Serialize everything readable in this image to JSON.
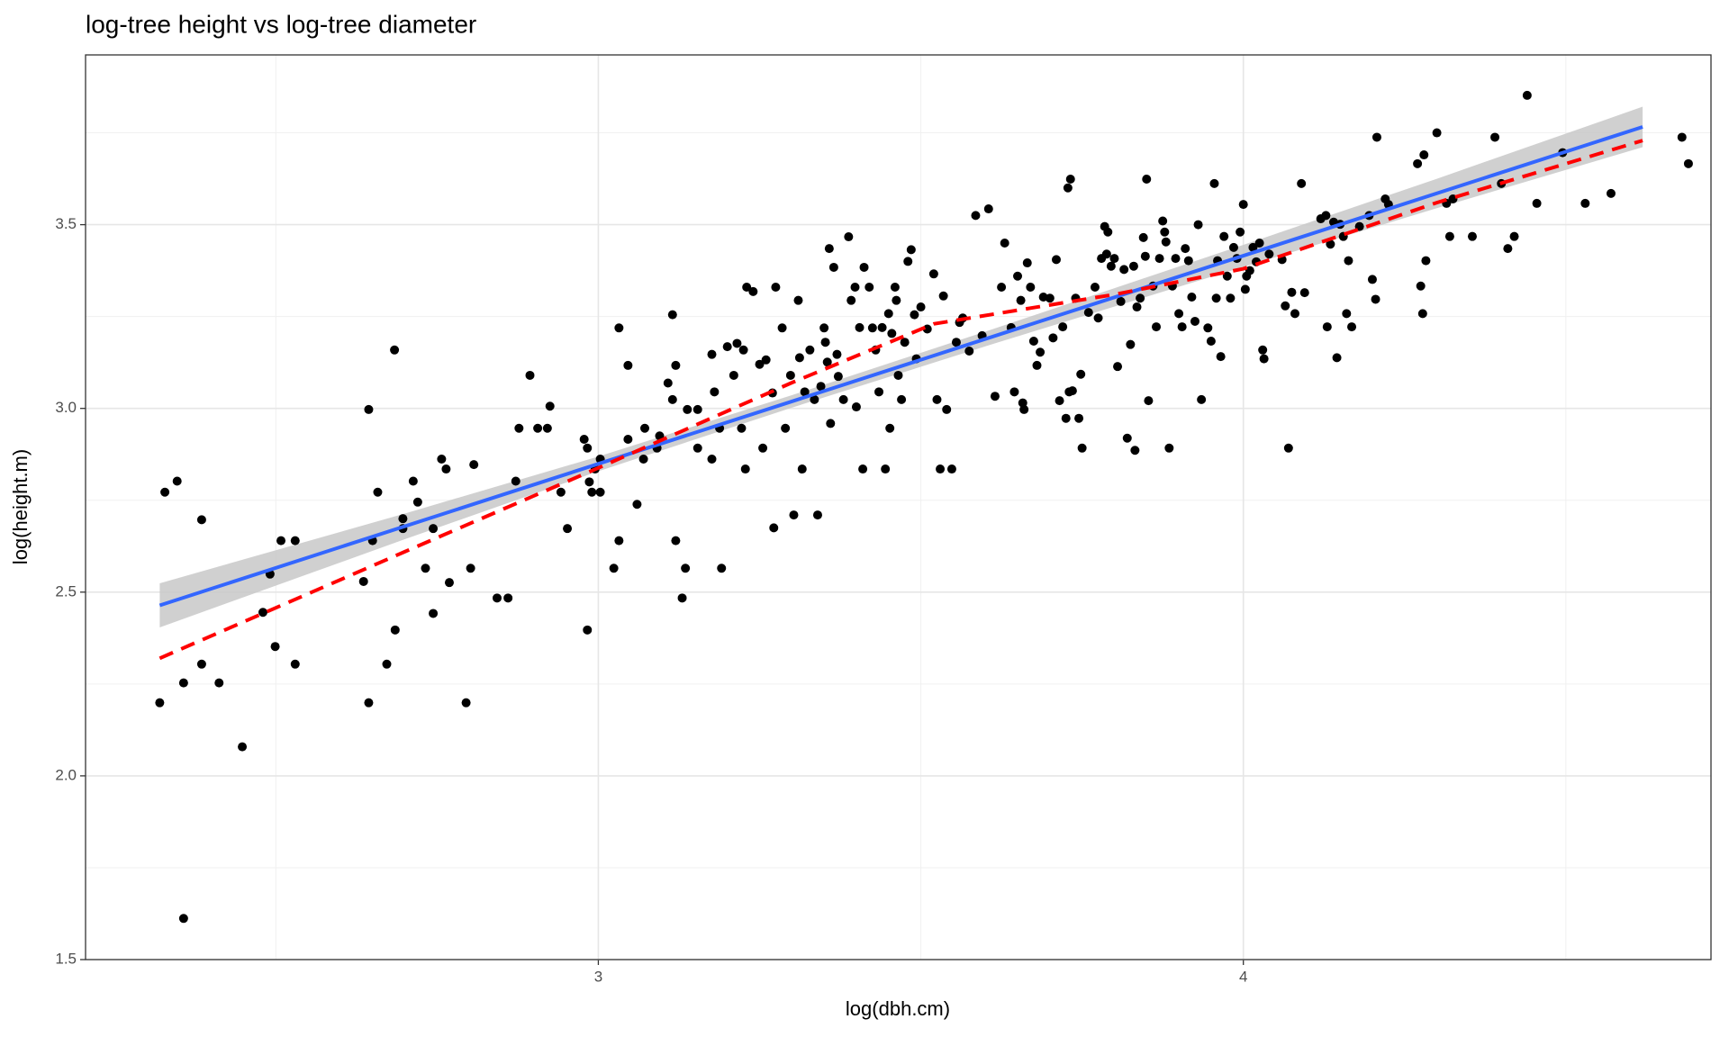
{
  "chart_data": {
    "type": "scatter",
    "title": "log-tree height vs log-tree diameter",
    "x_label": "log(dbh.cm)",
    "y_label": "log(height.m)",
    "xlim": [
      2.205,
      4.725
    ],
    "ylim": [
      1.5,
      3.962
    ],
    "xticks": [
      3,
      4
    ],
    "yticks": [
      1.5,
      {
        "value": 2,
        "label": "2.0"
      },
      2.5,
      {
        "value": 3,
        "label": "3.0"
      },
      3.5
    ],
    "xminor": [
      2.5,
      3.5,
      4.5
    ],
    "yminor": [
      1.75,
      2.25,
      2.75,
      3.25,
      3.75
    ],
    "grid": true,
    "series": [
      {
        "type": "scatter",
        "color": "#000000",
        "x": [
          2.32,
          2.328,
          2.347,
          2.357,
          2.357,
          2.385,
          2.385,
          2.412,
          2.448,
          2.48,
          2.491,
          2.499,
          2.508,
          2.53,
          2.53,
          2.636,
          2.644,
          2.644,
          2.65,
          2.658,
          2.672,
          2.684,
          2.685,
          2.697,
          2.697,
          2.713,
          2.72,
          2.732,
          2.744,
          2.744,
          2.757,
          2.764,
          2.769,
          2.795,
          2.802,
          2.807,
          2.843,
          2.86,
          2.872,
          2.877,
          2.894,
          2.906,
          2.921,
          2.925,
          2.942,
          2.952,
          2.978,
          2.983,
          2.983,
          2.986,
          2.99,
          2.995,
          3.003,
          3.003,
          3.024,
          3.032,
          3.032,
          3.046,
          3.046,
          3.06,
          3.07,
          3.072,
          3.091,
          3.095,
          3.108,
          3.115,
          3.115,
          3.12,
          3.12,
          3.13,
          3.135,
          3.138,
          3.154,
          3.154,
          3.176,
          3.176,
          3.18,
          3.188,
          3.191,
          3.2,
          3.21,
          3.215,
          3.222,
          3.225,
          3.228,
          3.23,
          3.24,
          3.25,
          3.255,
          3.26,
          3.27,
          3.272,
          3.275,
          3.285,
          3.29,
          3.298,
          3.303,
          3.31,
          3.312,
          3.316,
          3.32,
          3.328,
          3.335,
          3.34,
          3.345,
          3.35,
          3.352,
          3.355,
          3.358,
          3.36,
          3.365,
          3.37,
          3.372,
          3.38,
          3.388,
          3.392,
          3.398,
          3.4,
          3.405,
          3.41,
          3.412,
          3.42,
          3.425,
          3.43,
          3.435,
          3.44,
          3.445,
          3.45,
          3.452,
          3.455,
          3.46,
          3.462,
          3.465,
          3.47,
          3.475,
          3.48,
          3.485,
          3.49,
          3.493,
          3.5,
          3.51,
          3.52,
          3.525,
          3.53,
          3.535,
          3.54,
          3.548,
          3.555,
          3.56,
          3.565,
          3.575,
          3.585,
          3.595,
          3.605,
          3.615,
          3.625,
          3.63,
          3.64,
          3.645,
          3.65,
          3.655,
          3.658,
          3.66,
          3.665,
          3.67,
          3.675,
          3.68,
          3.685,
          3.69,
          3.7,
          3.705,
          3.71,
          3.715,
          3.72,
          3.725,
          3.728,
          3.73,
          3.732,
          3.735,
          3.74,
          3.745,
          3.748,
          3.75,
          3.76,
          3.77,
          3.775,
          3.78,
          3.785,
          3.788,
          3.79,
          3.795,
          3.8,
          3.805,
          3.81,
          3.815,
          3.82,
          3.825,
          3.83,
          3.832,
          3.835,
          3.84,
          3.845,
          3.848,
          3.85,
          3.853,
          3.86,
          3.865,
          3.87,
          3.875,
          3.878,
          3.88,
          3.885,
          3.89,
          3.895,
          3.9,
          3.905,
          3.91,
          3.915,
          3.92,
          3.925,
          3.93,
          3.935,
          3.945,
          3.95,
          3.955,
          3.958,
          3.96,
          3.965,
          3.97,
          3.975,
          3.98,
          3.985,
          3.99,
          3.995,
          4.0,
          4.003,
          4.005,
          4.01,
          4.015,
          4.02,
          4.025,
          4.03,
          4.032,
          4.04,
          4.06,
          4.065,
          4.07,
          4.075,
          4.08,
          4.09,
          4.095,
          4.12,
          4.128,
          4.13,
          4.135,
          4.14,
          4.145,
          4.15,
          4.155,
          4.16,
          4.163,
          4.168,
          4.18,
          4.195,
          4.2,
          4.205,
          4.207,
          4.22,
          4.225,
          4.27,
          4.275,
          4.278,
          4.28,
          4.283,
          4.3,
          4.315,
          4.32,
          4.325,
          4.355,
          4.39,
          4.4,
          4.41,
          4.42,
          4.44,
          4.455,
          4.495,
          4.53,
          4.57,
          4.68,
          4.69
        ],
        "values": [
          2.199,
          2.772,
          2.802,
          2.253,
          1.612,
          2.697,
          2.304,
          2.253,
          2.079,
          2.445,
          2.549,
          2.352,
          2.64,
          2.64,
          2.304,
          2.529,
          2.997,
          2.199,
          2.64,
          2.772,
          2.304,
          3.159,
          2.397,
          2.7,
          2.673,
          2.802,
          2.745,
          2.565,
          2.442,
          2.673,
          2.862,
          2.835,
          2.526,
          2.199,
          2.565,
          2.847,
          2.484,
          2.484,
          2.802,
          2.946,
          3.09,
          2.946,
          2.946,
          3.006,
          2.772,
          2.673,
          2.916,
          2.397,
          2.892,
          2.8,
          2.772,
          2.835,
          2.862,
          2.772,
          2.565,
          3.219,
          2.64,
          2.916,
          3.117,
          2.739,
          2.862,
          2.946,
          2.892,
          2.925,
          3.069,
          3.255,
          3.024,
          3.117,
          2.64,
          2.484,
          2.565,
          2.997,
          2.997,
          2.892,
          2.862,
          3.147,
          3.045,
          2.946,
          2.565,
          3.168,
          3.09,
          3.177,
          2.946,
          3.159,
          2.835,
          3.33,
          3.318,
          3.12,
          2.892,
          3.132,
          3.042,
          2.675,
          3.33,
          3.219,
          2.946,
          3.09,
          2.71,
          3.294,
          3.138,
          2.835,
          3.045,
          3.159,
          3.024,
          2.71,
          3.06,
          3.219,
          3.18,
          3.126,
          3.435,
          2.959,
          3.384,
          3.147,
          3.087,
          3.024,
          3.467,
          3.294,
          3.33,
          3.004,
          3.22,
          2.835,
          3.384,
          3.33,
          3.219,
          3.159,
          3.045,
          3.22,
          2.835,
          3.258,
          2.946,
          3.204,
          3.33,
          3.294,
          3.09,
          3.024,
          3.18,
          3.4,
          3.432,
          3.255,
          3.135,
          3.276,
          3.216,
          3.366,
          3.024,
          2.835,
          3.306,
          2.997,
          2.835,
          3.18,
          3.234,
          3.246,
          3.156,
          3.525,
          3.198,
          3.543,
          3.033,
          3.33,
          3.45,
          3.22,
          3.045,
          3.36,
          3.294,
          3.015,
          2.997,
          3.396,
          3.33,
          3.183,
          3.117,
          3.153,
          3.303,
          3.3,
          3.192,
          3.405,
          3.021,
          3.222,
          2.973,
          3.6,
          3.045,
          3.624,
          3.048,
          3.3,
          2.973,
          3.093,
          2.892,
          3.261,
          3.33,
          3.246,
          3.408,
          3.495,
          3.42,
          3.48,
          3.387,
          3.408,
          3.114,
          3.291,
          3.378,
          2.919,
          3.174,
          3.387,
          2.886,
          3.276,
          3.3,
          3.465,
          3.414,
          3.624,
          3.021,
          3.333,
          3.222,
          3.408,
          3.51,
          3.48,
          3.453,
          2.892,
          3.333,
          3.408,
          3.258,
          3.222,
          3.435,
          3.402,
          3.303,
          3.237,
          3.5,
          3.024,
          3.219,
          3.183,
          3.612,
          3.3,
          3.402,
          3.141,
          3.468,
          3.36,
          3.3,
          3.438,
          3.408,
          3.48,
          3.555,
          3.324,
          3.36,
          3.375,
          3.438,
          3.399,
          3.45,
          3.159,
          3.135,
          3.42,
          3.405,
          3.279,
          2.892,
          3.316,
          3.258,
          3.612,
          3.315,
          3.516,
          3.525,
          3.222,
          3.447,
          3.507,
          3.138,
          3.501,
          3.468,
          3.258,
          3.402,
          3.222,
          3.495,
          3.525,
          3.351,
          3.297,
          3.738,
          3.57,
          3.555,
          3.666,
          3.333,
          3.258,
          3.69,
          3.402,
          3.75,
          3.558,
          3.468,
          3.57,
          3.468,
          3.738,
          3.612,
          3.435,
          3.468,
          3.852,
          3.558,
          3.696,
          3.558,
          3.585,
          3.738,
          3.666
        ]
      },
      {
        "type": "band",
        "color": "#c8c8c8",
        "x": [
          2.32,
          2.7,
          3.0,
          3.3,
          3.6,
          4.0,
          4.3,
          4.619
        ],
        "lower": [
          2.404,
          2.644,
          2.829,
          3.002,
          3.169,
          3.385,
          3.545,
          3.711
        ],
        "upper": [
          2.524,
          2.714,
          2.869,
          3.036,
          3.209,
          3.445,
          3.625,
          3.821
        ]
      },
      {
        "type": "line",
        "color": "#3366ff",
        "x": [
          2.32,
          4.619
        ],
        "values": [
          2.464,
          3.766
        ]
      },
      {
        "type": "line",
        "color": "#ff0000",
        "dashed": true,
        "x": [
          2.32,
          2.7,
          3.0,
          3.3,
          3.52,
          3.8,
          4.0,
          4.3,
          4.619
        ],
        "values": [
          2.32,
          2.61,
          2.838,
          3.07,
          3.23,
          3.31,
          3.38,
          3.56,
          3.729
        ]
      }
    ]
  }
}
